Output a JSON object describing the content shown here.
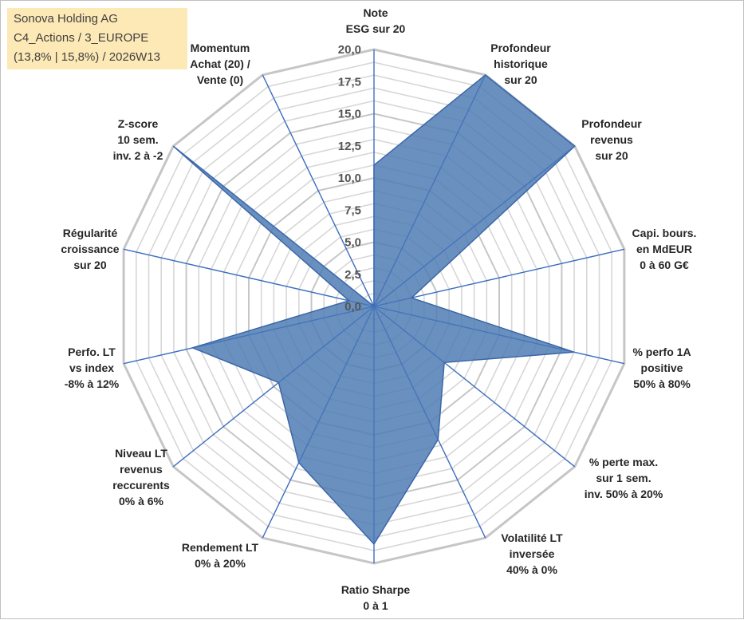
{
  "info_box": {
    "line1": "Sonova Holding AG",
    "line2": "C4_Actions / 3_EUROPE",
    "line3": "(13,8% | 15,8%) / 2026W13"
  },
  "colors": {
    "fill": "#4f7db3",
    "stroke": "#3a66a8",
    "spoke": "#3f6fbf",
    "ring_major": "#c6c6c6",
    "ring_minor": "#e3e3e3"
  },
  "chart_data": {
    "type": "radar",
    "scale_min": 0,
    "scale_max": 20,
    "tick_labels": [
      "0,0",
      "2,5",
      "5,0",
      "7,5",
      "10,0",
      "12,5",
      "15,0",
      "17,5",
      "20,0"
    ],
    "axes": [
      {
        "label": [
          "Note",
          "ESG sur 20"
        ],
        "value": 11
      },
      {
        "label": [
          "Profondeur",
          "historique",
          "sur 20"
        ],
        "value": 20
      },
      {
        "label": [
          "Profondeur",
          "revenus",
          "sur 20"
        ],
        "value": 20
      },
      {
        "label": [
          "Capi. bours.",
          "en MdEUR",
          "0 à 60 G€"
        ],
        "value": 3
      },
      {
        "label": [
          "% perfo 1A",
          "positive",
          "50% à 80%"
        ],
        "value": 16
      },
      {
        "label": [
          "% perte max.",
          "sur 1 sem.",
          "inv. 50% à 20%"
        ],
        "value": 7
      },
      {
        "label": [
          "Volatilité LT",
          "inversée",
          "40% à 0%"
        ],
        "value": 11.5
      },
      {
        "label": [
          "Ratio Sharpe",
          "0 à 1"
        ],
        "value": 18.5
      },
      {
        "label": [
          "Rendement LT",
          "0% à 20%"
        ],
        "value": 13.5
      },
      {
        "label": [
          "Niveau LT",
          "revenus",
          "reccurents",
          "0% à 6%"
        ],
        "value": 9.5
      },
      {
        "label": [
          "Perfo. LT",
          "vs index",
          "-8% à 12%"
        ],
        "value": 14.5
      },
      {
        "label": [
          "Régularité",
          "croissance",
          "sur 20"
        ],
        "value": 2
      },
      {
        "label": [
          "Z-score",
          "10 sem.",
          "inv. 2 à -2"
        ],
        "value": 20
      },
      {
        "label": [
          "Momentum",
          "Achat (20) /",
          "Vente (0)"
        ],
        "value": 0
      }
    ]
  }
}
